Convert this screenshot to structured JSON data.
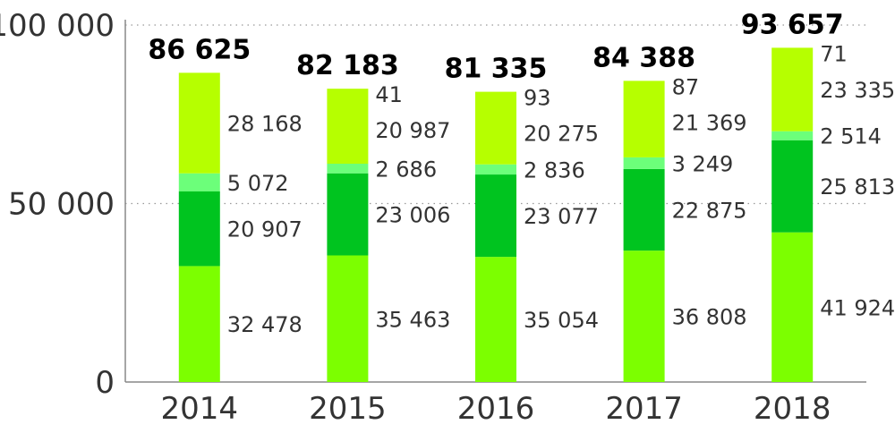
{
  "chart_data": {
    "type": "bar",
    "stacked": true,
    "categories": [
      "2014",
      "2015",
      "2016",
      "2017",
      "2018"
    ],
    "series": [
      {
        "values": [
          32478,
          35463,
          35054,
          36808,
          41924
        ]
      },
      {
        "values": [
          20907,
          23006,
          23077,
          22875,
          25813
        ]
      },
      {
        "values": [
          5072,
          2686,
          2836,
          3249,
          2514
        ]
      },
      {
        "values": [
          28168,
          20987,
          20275,
          21369,
          23335
        ]
      },
      {
        "values": [
          0,
          41,
          93,
          87,
          71
        ]
      }
    ],
    "segment_labels": [
      [
        "32 478",
        "35 463",
        "35 054",
        "36 808",
        "41 924"
      ],
      [
        "20 907",
        "23 006",
        "23 077",
        "22 875",
        "25 813"
      ],
      [
        "5 072",
        "2 686",
        "2 836",
        "3 249",
        "2 514"
      ],
      [
        "28 168",
        "20 987",
        "20 275",
        "21 369",
        "23 335"
      ],
      [
        "",
        "41",
        "93",
        "87",
        "71"
      ]
    ],
    "totals": [
      86625,
      82183,
      81335,
      84388,
      93657
    ],
    "total_labels": [
      "86 625",
      "82 183",
      "81 335",
      "84 388",
      "93 657"
    ],
    "ylim": [
      0,
      100000
    ],
    "yticks": [
      0,
      50000,
      100000
    ],
    "ytick_labels": [
      "0",
      "50 000",
      "100 000"
    ],
    "grid": "dotted horizontal at 50 000 and 100 000",
    "legend": "none",
    "colors": [
      "#7cff00",
      "#00c41f",
      "#6cff7a",
      "#b6ff00",
      "#b6ff00"
    ]
  }
}
